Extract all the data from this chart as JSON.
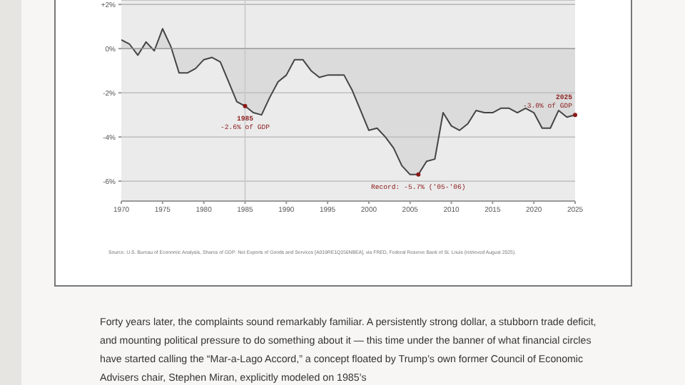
{
  "chart_data": {
    "type": "area",
    "x": [
      1970,
      1971,
      1972,
      1973,
      1974,
      1975,
      1976,
      1977,
      1978,
      1979,
      1980,
      1981,
      1982,
      1983,
      1984,
      1985,
      1986,
      1987,
      1988,
      1989,
      1990,
      1991,
      1992,
      1993,
      1994,
      1995,
      1996,
      1997,
      1998,
      1999,
      2000,
      2001,
      2002,
      2003,
      2004,
      2005,
      2006,
      2007,
      2008,
      2009,
      2010,
      2011,
      2012,
      2013,
      2014,
      2015,
      2016,
      2017,
      2018,
      2019,
      2020,
      2021,
      2022,
      2023,
      2024,
      2025
    ],
    "series": [
      {
        "color": "#444444",
        "values": [
          0.4,
          0.2,
          -0.3,
          0.3,
          -0.1,
          0.9,
          0.1,
          -1.1,
          -1.1,
          -0.9,
          -0.5,
          -0.4,
          -0.6,
          -1.5,
          -2.4,
          -2.6,
          -2.9,
          -3.0,
          -2.2,
          -1.5,
          -1.2,
          -0.5,
          -0.5,
          -1.0,
          -1.3,
          -1.2,
          -1.2,
          -1.2,
          -1.9,
          -2.8,
          -3.7,
          -3.6,
          -4.0,
          -4.5,
          -5.3,
          -5.7,
          -5.7,
          -5.1,
          -5.0,
          -2.9,
          -3.5,
          -3.7,
          -3.4,
          -2.8,
          -2.9,
          -2.9,
          -2.7,
          -2.7,
          -2.9,
          -2.7,
          -2.9,
          -3.6,
          -3.6,
          -2.8,
          -3.1,
          -3.0
        ]
      }
    ],
    "xlim": [
      1970,
      2025
    ],
    "xticks": [
      1970,
      1975,
      1980,
      1985,
      1990,
      1995,
      2000,
      2005,
      2010,
      2015,
      2020,
      2025
    ],
    "ylim": [
      -6.9,
      2.2
    ],
    "yticks": [
      {
        "value": 2,
        "label": "+2%"
      },
      {
        "value": 0,
        "label": "0%"
      },
      {
        "value": -2,
        "label": "-2%"
      },
      {
        "value": -4,
        "label": "-4%"
      },
      {
        "value": -6,
        "label": "-6%"
      }
    ],
    "grid": "y",
    "marker": "none",
    "ref_lines": [
      {
        "axis": "x",
        "value": 1985,
        "color": "#c8c8c8"
      }
    ],
    "annotations": [
      {
        "text": "1985",
        "x": 1985,
        "y": -2.6
      },
      {
        "text": "-2.6% of GDP",
        "x": 1985,
        "y": -2.6
      },
      {
        "text": "Record: -5.7% ('05-'06)",
        "x": 2006,
        "y": -5.7
      },
      {
        "text": "2025",
        "x": 2025,
        "y": -3.0
      },
      {
        "text": "-3.0% of GDP",
        "x": 2025,
        "y": -3.0
      },
      "Source: U.S. Bureau of Economic Analysis, Shares of GDP: Net Exports of Goods and Services [A019RE1Q156NBEA], via FRED, Federal Reserve Bank of St. Louis (retrieved August 2025).",
      "Forty years later, the complaints sound remarkably familiar. A persistently strong dollar, a stubborn trade deficit, and mounting political pressure to do something about it — this time under the banner of what financial circles have started calling the “Mar-a-Lago Accord,” a concept floated by Trump’s own former Council of Economic Advisers chair, Stephen Miran, explicitly modeled on 1985’s"
    ]
  }
}
